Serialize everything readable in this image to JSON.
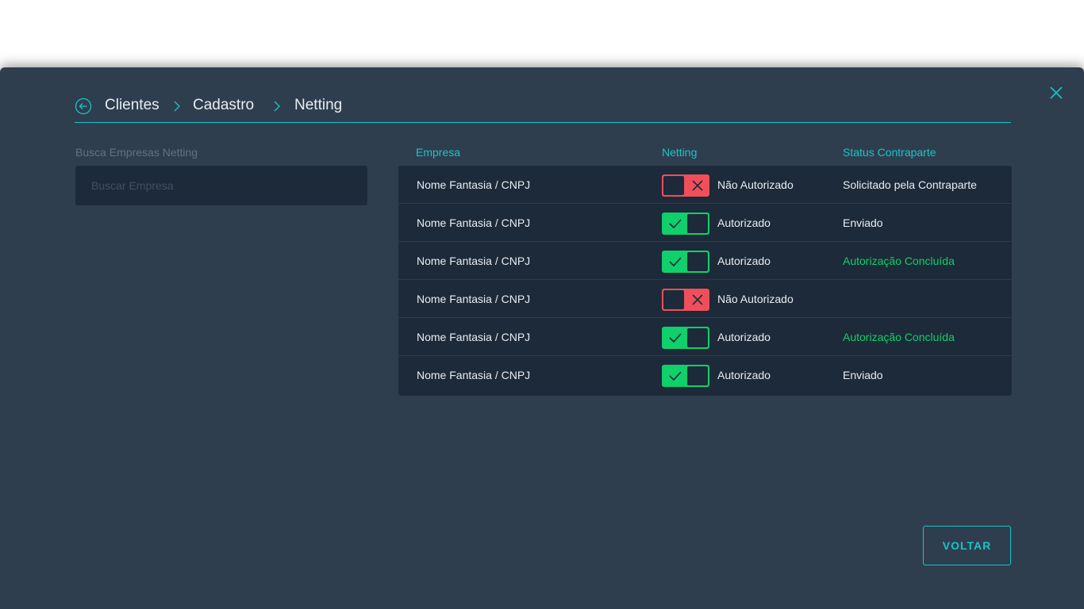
{
  "breadcrumb": {
    "items": [
      "Clientes",
      "Cadastro",
      "Netting"
    ]
  },
  "search": {
    "label": "Busca Empresas Netting",
    "placeholder": "Buscar Empresa",
    "value": ""
  },
  "table": {
    "headers": {
      "empresa": "Empresa",
      "netting": "Netting",
      "status": "Status Contraparte"
    },
    "rows": [
      {
        "empresa": "Nome Fantasia / CNPJ",
        "netting_on": false,
        "netting_label": "Não Autorizado",
        "status": "Solicitado pela Contraparte",
        "status_color": "#e8edf2"
      },
      {
        "empresa": "Nome Fantasia / CNPJ",
        "netting_on": true,
        "netting_label": "Autorizado",
        "status": "Enviado",
        "status_color": "#e8edf2"
      },
      {
        "empresa": "Nome Fantasia / CNPJ",
        "netting_on": true,
        "netting_label": "Autorizado",
        "status": "Autorização Concluída",
        "status_color": "#0fd06a"
      },
      {
        "empresa": "Nome Fantasia / CNPJ",
        "netting_on": false,
        "netting_label": "Não Autorizado",
        "status": "",
        "status_color": "#e8edf2"
      },
      {
        "empresa": "Nome Fantasia / CNPJ",
        "netting_on": true,
        "netting_label": "Autorizado",
        "status": "Autorização Concluída",
        "status_color": "#0fd06a"
      },
      {
        "empresa": "Nome Fantasia / CNPJ",
        "netting_on": true,
        "netting_label": "Autorizado",
        "status": "Enviado",
        "status_color": "#e8edf2"
      }
    ]
  },
  "actions": {
    "back_label": "VOLTAR"
  },
  "colors": {
    "accent": "#17c5c9",
    "success": "#0fd06a",
    "danger": "#ef4f5b",
    "background": "#2f3e4e",
    "panel": "#1d2a39"
  },
  "icons": {
    "close": "close-icon",
    "back": "arrow-left-circle-icon",
    "separator": "chevron-right-icon",
    "toggle_on": "check-icon",
    "toggle_off": "x-icon"
  }
}
